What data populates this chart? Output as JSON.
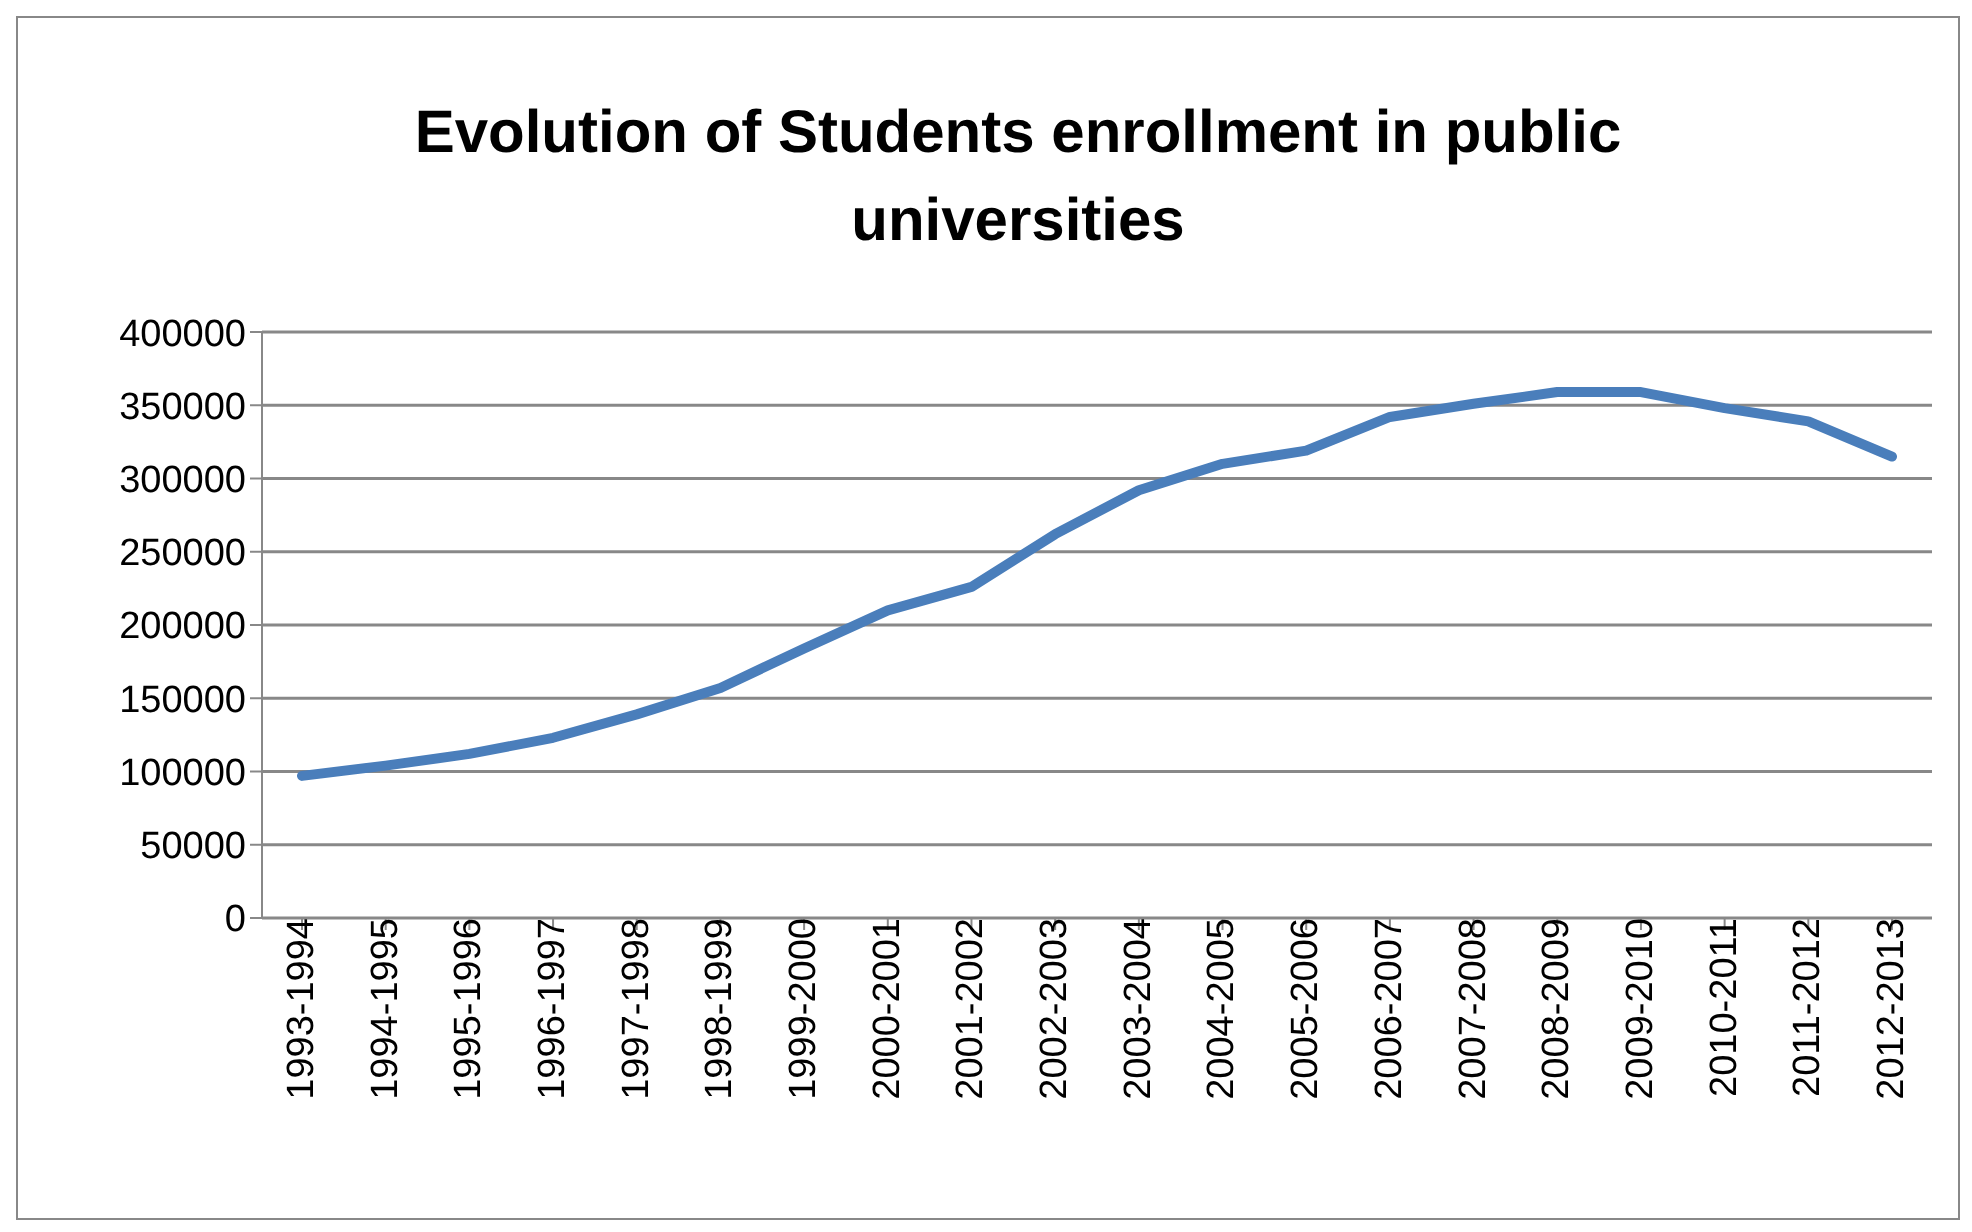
{
  "chart_data": {
    "type": "line",
    "title": "Evolution of Students enrollment in public universities",
    "categories": [
      "1993-1994",
      "1994-1995",
      "1995-1996",
      "1996-1997",
      "1997-1998",
      "1998-1999",
      "1999-2000",
      "2000-2001",
      "2001-2002",
      "2002-2003",
      "2003-2004",
      "2004-2005",
      "2005-2006",
      "2006-2007",
      "2007-2008",
      "2008-2009",
      "2009-2010",
      "2010-2011",
      "2011-2012",
      "2012-2013"
    ],
    "series": [
      {
        "color": "#4a7ebb",
        "values": [
          97000,
          104000,
          112000,
          123000,
          139000,
          157000,
          184000,
          210000,
          226000,
          262000,
          292000,
          310000,
          319000,
          342000,
          351000,
          359000,
          359000,
          348000,
          339000,
          315000
        ]
      }
    ],
    "ylim": [
      0,
      400000
    ],
    "yticks": [
      0,
      50000,
      100000,
      150000,
      200000,
      250000,
      300000,
      350000,
      400000
    ],
    "grid": "y",
    "legend": false,
    "marker": "none",
    "line_style": "solid"
  }
}
